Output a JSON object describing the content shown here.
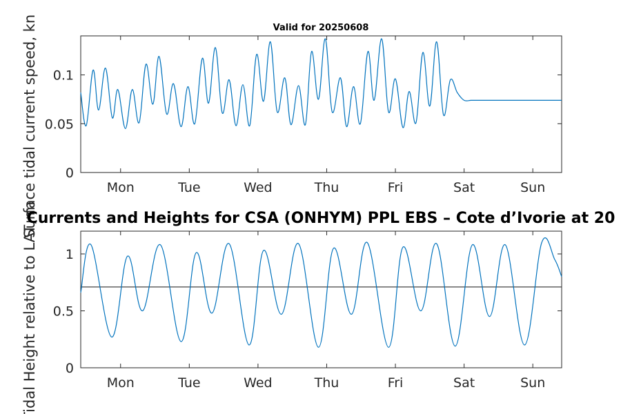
{
  "main_title": "Currents and Heights for CSA (ONHYM) PPL EBS  – Cote d’Ivorie at 20",
  "colors": {
    "series": "#0072BD",
    "reference_line": "#404040",
    "axis": "#262626",
    "background": "#ffffff"
  },
  "chart_data": [
    {
      "type": "line",
      "title": "Valid for 20250608",
      "xlabel": "",
      "ylabel": "Surface tidal current speed, kn",
      "x_ticks": [
        "Mon",
        "Tue",
        "Wed",
        "Thu",
        "Fri",
        "Sat",
        "Sun"
      ],
      "x_tick_days": [
        1,
        2,
        3,
        4,
        5,
        6,
        7
      ],
      "xlim_days": [
        0.42,
        7.42
      ],
      "y_ticks": [
        "0",
        "0.05",
        "0.1"
      ],
      "y_tick_values": [
        0,
        0.05,
        0.1
      ],
      "ylim": [
        0,
        0.14
      ],
      "grid": false,
      "legend": "none",
      "series": [
        {
          "x": [
            0.42,
            0.5,
            0.6,
            0.68,
            0.78,
            0.88,
            0.96,
            1.07,
            1.17,
            1.27,
            1.37,
            1.47,
            1.56,
            1.67,
            1.77,
            1.88,
            1.98,
            2.08,
            2.19,
            2.28,
            2.38,
            2.48,
            2.58,
            2.68,
            2.78,
            2.88,
            2.98,
            3.08,
            3.18,
            3.28,
            3.39,
            3.48,
            3.59,
            3.69,
            3.78,
            3.88,
            3.98,
            4.08,
            4.2,
            4.29,
            4.39,
            4.49,
            4.6,
            4.69,
            4.8,
            4.9,
            5.0,
            5.11,
            5.2,
            5.3,
            5.4,
            5.5,
            5.6,
            5.7,
            5.8,
            5.9,
            6.0,
            6.1,
            6.19,
            6.3,
            6.4,
            6.5,
            6.6,
            6.7,
            6.8,
            6.9,
            7.0,
            7.12,
            7.2,
            7.3,
            7.39,
            7.42
          ],
          "y": [
            0.082,
            0.048,
            0.105,
            0.064,
            0.107,
            0.056,
            0.085,
            0.045,
            0.085,
            0.051,
            0.111,
            0.07,
            0.119,
            0.06,
            0.091,
            0.047,
            0.088,
            0.05,
            0.117,
            0.071,
            0.128,
            0.061,
            0.095,
            0.048,
            0.09,
            0.048,
            0.121,
            0.073,
            0.134,
            0.062,
            0.097,
            0.049,
            0.089,
            0.049,
            0.124,
            0.075,
            0.137,
            0.062,
            0.097,
            0.047,
            0.088,
            0.05,
            0.124,
            0.074,
            0.137,
            0.062,
            0.096,
            0.046,
            0.083,
            0.051,
            0.123,
            0.068,
            0.134,
            0.059,
            0.095,
            0.082,
            0.074,
            0.074,
            0.074,
            0.074,
            0.074,
            0.074,
            0.074,
            0.074,
            0.074,
            0.074,
            0.074,
            0.074,
            0.074,
            0.074,
            0.074,
            0.074
          ]
        }
      ]
    },
    {
      "type": "line",
      "title": "",
      "xlabel": "",
      "ylabel": "Tidal Height relative to LAT, m",
      "x_ticks": [
        "Mon",
        "Tue",
        "Wed",
        "Thu",
        "Fri",
        "Sat",
        "Sun"
      ],
      "x_tick_days": [
        1,
        2,
        3,
        4,
        5,
        6,
        7
      ],
      "xlim_days": [
        0.42,
        7.42
      ],
      "y_ticks": [
        "0",
        "0.5",
        "1"
      ],
      "y_tick_values": [
        0,
        0.5,
        1
      ],
      "ylim": [
        0,
        1.2
      ],
      "grid": false,
      "legend": "none",
      "reference_line": 0.71,
      "series": [
        {
          "x": [
            0.42,
            0.57,
            0.87,
            1.1,
            1.32,
            1.58,
            1.88,
            2.1,
            2.33,
            2.58,
            2.87,
            3.08,
            3.34,
            3.59,
            3.88,
            4.1,
            4.36,
            4.59,
            4.9,
            5.11,
            5.37,
            5.6,
            5.87,
            6.12,
            6.37,
            6.6,
            6.88,
            7.13,
            7.32,
            7.42
          ],
          "y": [
            0.66,
            1.08,
            0.27,
            0.98,
            0.5,
            1.08,
            0.23,
            1.01,
            0.48,
            1.09,
            0.2,
            1.03,
            0.47,
            1.09,
            0.18,
            1.05,
            0.47,
            1.1,
            0.18,
            1.06,
            0.5,
            1.09,
            0.19,
            1.08,
            0.45,
            1.08,
            0.2,
            1.1,
            0.95,
            0.8
          ]
        }
      ]
    }
  ]
}
